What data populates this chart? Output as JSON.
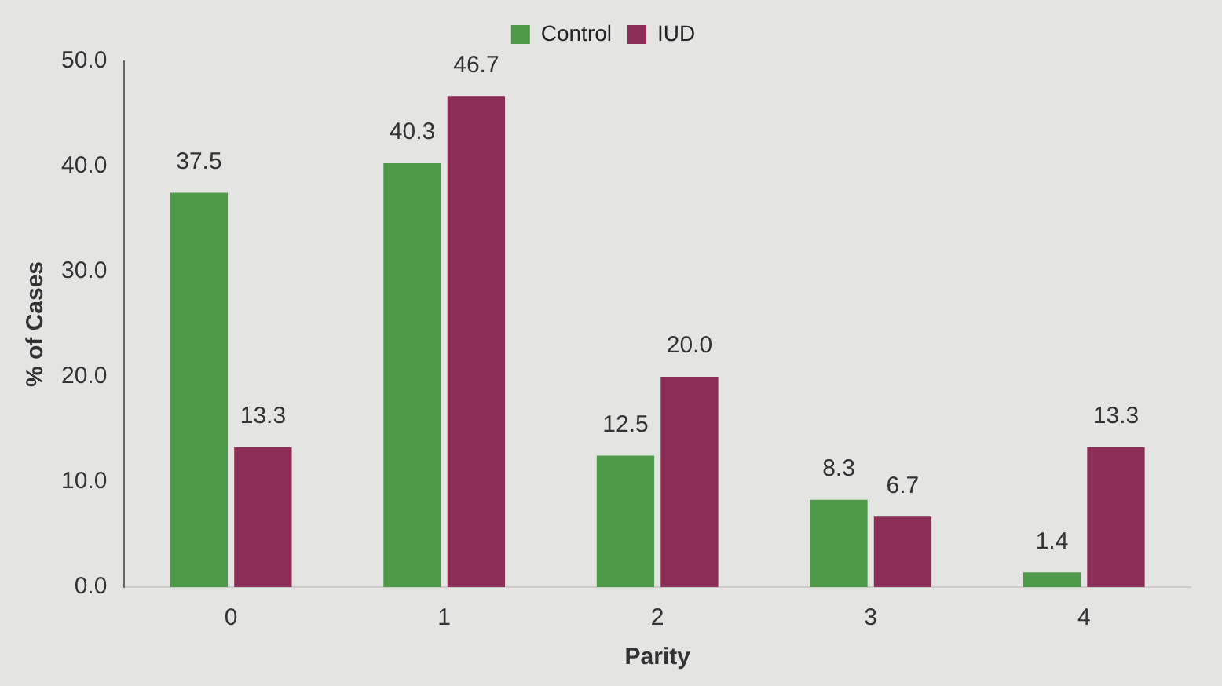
{
  "chart_data": {
    "type": "bar",
    "xlabel": "Parity",
    "ylabel": "% of Cases",
    "categories": [
      "0",
      "1",
      "2",
      "3",
      "4"
    ],
    "series": [
      {
        "name": "Control",
        "color": "#4e9a4a",
        "values": [
          37.5,
          40.3,
          12.5,
          8.3,
          1.4
        ],
        "value_labels": [
          "37.5",
          "40.3",
          "12.5",
          "8.3",
          "1.4"
        ]
      },
      {
        "name": "IUD",
        "color": "#8c2d57",
        "values": [
          13.3,
          46.7,
          20.0,
          6.7,
          13.3
        ],
        "value_labels": [
          "13.3",
          "46.7",
          "20.0",
          "6.7",
          "13.3"
        ]
      }
    ],
    "ylim": [
      0,
      50
    ],
    "yticks": [
      {
        "value": 0,
        "label": "0.0"
      },
      {
        "value": 10,
        "label": "10.0"
      },
      {
        "value": 20,
        "label": "20.0"
      },
      {
        "value": 30,
        "label": "30.0"
      },
      {
        "value": 40,
        "label": "40.0"
      },
      {
        "value": 50,
        "label": "50.0"
      }
    ],
    "grid": false,
    "legend": "top"
  }
}
